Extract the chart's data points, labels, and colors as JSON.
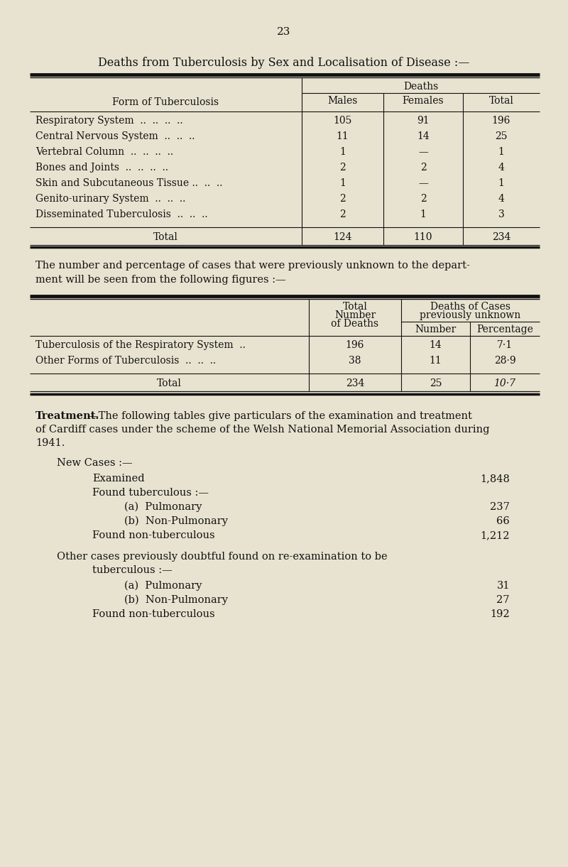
{
  "page_number": "23",
  "bg_color": "#e8e3d0",
  "text_color": "#111111",
  "title1": "Deaths from Tuberculosis by Sex and Localisation of Disease :—",
  "table1_header_col0": "Form of Tuberculosis",
  "table1_header_deaths": "Deaths",
  "table1_header_males": "Males",
  "table1_header_females": "Females",
  "table1_header_total": "Total",
  "table1_rows": [
    [
      "Respiratory System  ..  ..  ..  ..",
      "105",
      "91",
      "196"
    ],
    [
      "Central Nervous System  ..  ..  ..",
      "11",
      "14",
      "25"
    ],
    [
      "Vertebral Column  ..  ..  ..  ..",
      "1",
      "—",
      "1"
    ],
    [
      "Bones and Joints  ..  ..  ..  ..",
      "2",
      "2",
      "4"
    ],
    [
      "Skin and Subcutaneous Tissue ..  ..  ..",
      "1",
      "—",
      "1"
    ],
    [
      "Genito-urinary System  ..  ..  ..",
      "2",
      "2",
      "4"
    ],
    [
      "Disseminated Tuberculosis  ..  ..  ..",
      "2",
      "1",
      "3"
    ]
  ],
  "table1_total": [
    "Total",
    "124",
    "110",
    "234"
  ],
  "para1_line1": "The number and percentage of cases that were previously unknown to the depart-",
  "para1_line2": "ment will be seen from the following figures :—",
  "table2_header_total_nd": "Total\nNumber\nof Deaths",
  "table2_header_doc": "Deaths of Cases\npreviously unknown",
  "table2_header_number": "Number",
  "table2_header_percentage": "Percentage",
  "table2_rows": [
    [
      "Tuberculosis of the Respiratory System  ..",
      "196",
      "14",
      "7·1"
    ],
    [
      "Other Forms of Tuberculosis  ..  ..  ..",
      "38",
      "11",
      "28·9"
    ]
  ],
  "table2_total": [
    "Total",
    "234",
    "25",
    "10·7"
  ],
  "treatment_bold": "Treatment.",
  "treatment_rest": "—The following tables give particulars of the examination and treatment",
  "treatment_line2": "of Cardiff cases under the scheme of the Welsh National Memorial Association during",
  "treatment_line3": "1941.",
  "new_cases_header": "New Cases :—",
  "examined_label": "Examined",
  "examined_value": "1,848",
  "found_tb_label": "Found tuberculous :—",
  "pulmonary_a_label": "(a)  Pulmonary",
  "pulmonary_a_value": "237",
  "non_pulmonary_b_label": "(b)  Non-Pulmonary",
  "non_pulmonary_b_value": "66",
  "found_non_tb_label": "Found non-tuberculous",
  "found_non_tb_value": "1,212",
  "other_cases_line1": "Other cases previously doubtful found on re-examination to be",
  "other_cases_line2": "tuberculous :—",
  "pulmonary_a2_label": "(a)  Pulmonary",
  "pulmonary_a2_value": "31",
  "non_pulmonary_b2_label": "(b)  Non-Pulmonary",
  "non_pulmonary_b2_value": "27",
  "found_non_tb2_label": "Found non-tuberculous",
  "found_non_tb2_value": "192"
}
